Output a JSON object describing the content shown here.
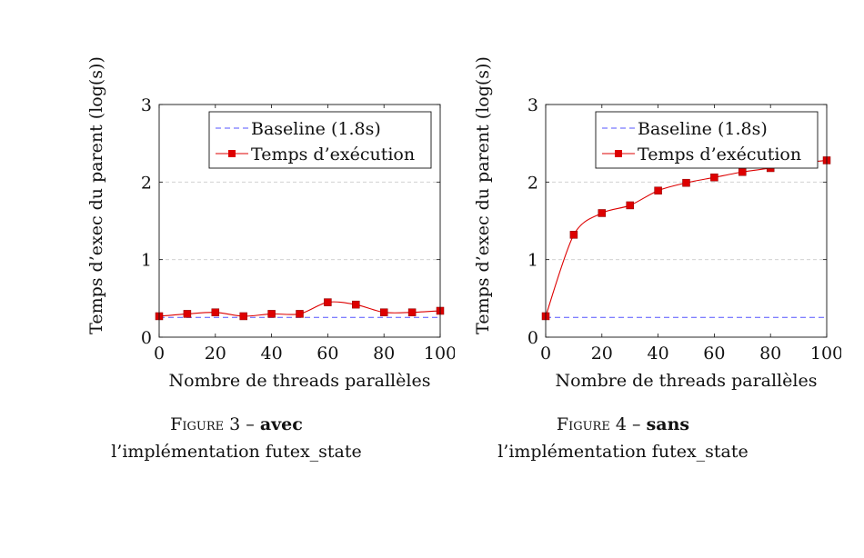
{
  "figures": [
    {
      "caption_label": "Figure 3",
      "caption_sep": " – ",
      "caption_bold": "avec",
      "caption_rest": "l’implémentation futex_state"
    },
    {
      "caption_label": "Figure 4",
      "caption_sep": " – ",
      "caption_bold": "sans",
      "caption_rest": "l’implémentation futex_state"
    }
  ],
  "chart_data": [
    {
      "type": "line",
      "xlabel": "Nombre de threads parallèles",
      "ylabel": "Temps d’exec du parent (log(s))",
      "xlim": [
        0,
        100
      ],
      "ylim": [
        0,
        3
      ],
      "xticks": [
        0,
        20,
        40,
        60,
        80,
        100
      ],
      "yticks": [
        0,
        1,
        2,
        3
      ],
      "grid": "horizontal dashed",
      "legend_position": "top-right",
      "series": [
        {
          "name": "Baseline (1.8s)",
          "style": "dashed",
          "color": "#5555ff",
          "marker": "none",
          "x": [
            0,
            100
          ],
          "y": [
            0.255,
            0.255
          ]
        },
        {
          "name": "Temps d’exécution",
          "style": "solid",
          "color": "#dd0000",
          "marker": "square",
          "x": [
            0,
            10,
            20,
            30,
            40,
            50,
            60,
            70,
            80,
            90,
            100
          ],
          "y": [
            0.27,
            0.3,
            0.32,
            0.27,
            0.3,
            0.3,
            0.45,
            0.42,
            0.32,
            0.32,
            0.34
          ]
        }
      ]
    },
    {
      "type": "line",
      "xlabel": "Nombre de threads parallèles",
      "ylabel": "Temps d’exec du parent (log(s))",
      "xlim": [
        0,
        100
      ],
      "ylim": [
        0,
        3
      ],
      "xticks": [
        0,
        20,
        40,
        60,
        80,
        100
      ],
      "yticks": [
        0,
        1,
        2,
        3
      ],
      "grid": "horizontal dashed",
      "legend_position": "top-right",
      "series": [
        {
          "name": "Baseline (1.8s)",
          "style": "dashed",
          "color": "#5555ff",
          "marker": "none",
          "x": [
            0,
            100
          ],
          "y": [
            0.255,
            0.255
          ]
        },
        {
          "name": "Temps d’exécution",
          "style": "solid",
          "color": "#dd0000",
          "marker": "square",
          "x": [
            0,
            10,
            20,
            30,
            40,
            50,
            60,
            70,
            80,
            90,
            100
          ],
          "y": [
            0.27,
            1.32,
            1.6,
            1.7,
            1.89,
            1.99,
            2.06,
            2.13,
            2.18,
            2.24,
            2.28
          ]
        }
      ]
    }
  ]
}
